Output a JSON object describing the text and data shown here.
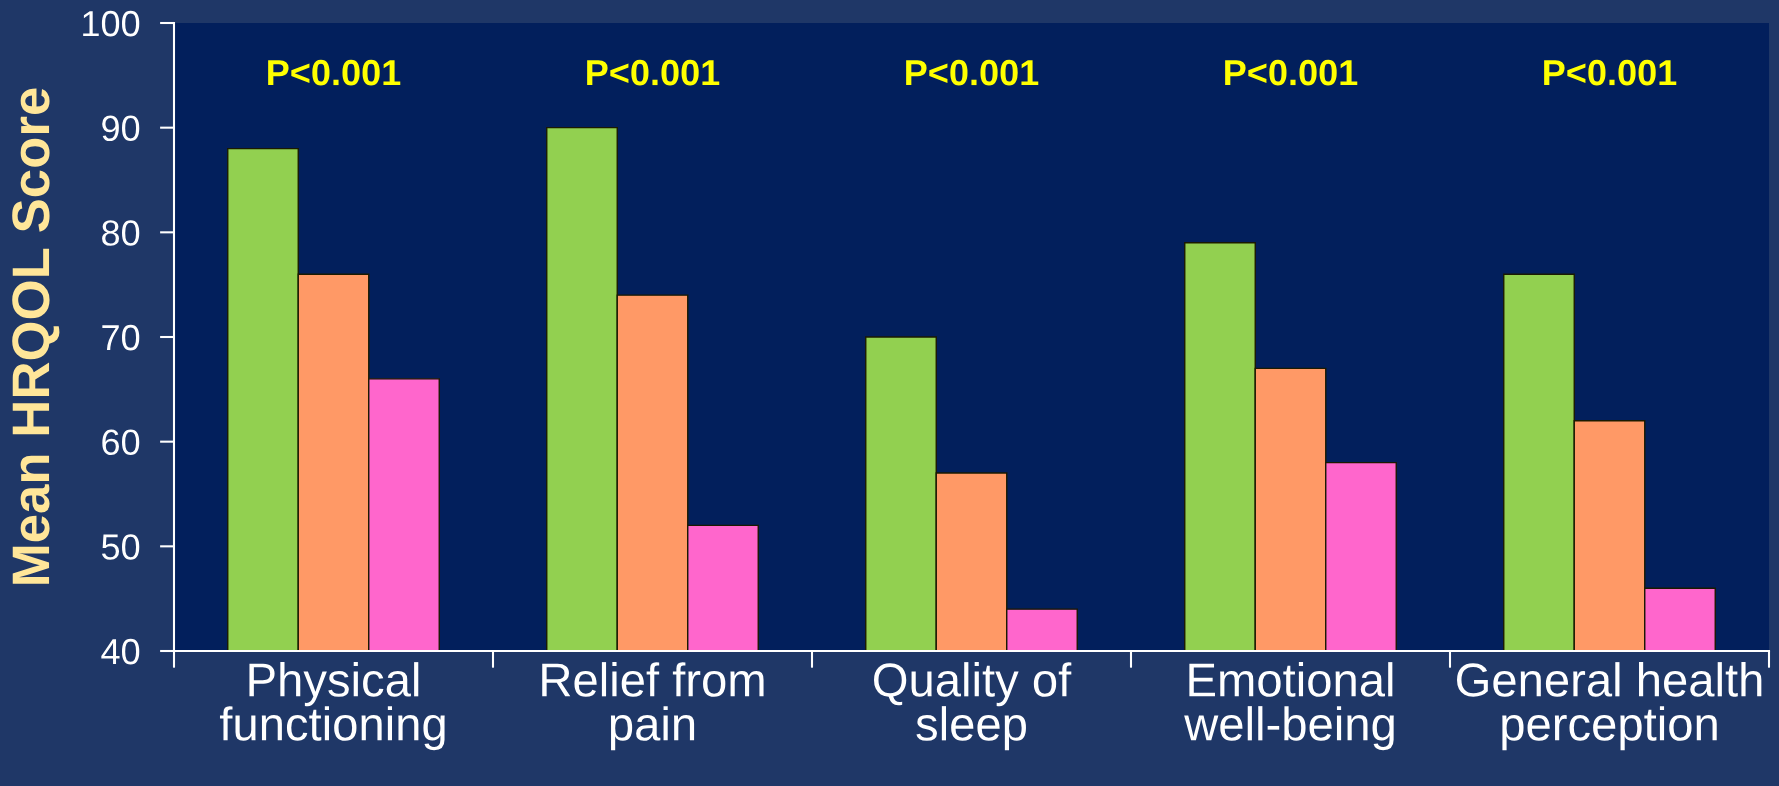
{
  "chart_data": {
    "type": "bar",
    "ylabel": "Mean HRQOL Score",
    "categories": [
      "Physical\nfunctioning",
      "Relief from\npain",
      "Quality of\nsleep",
      "Emotional\nwell-being",
      "General health\nperception"
    ],
    "series": [
      {
        "color": "#92d050",
        "values": [
          88,
          90,
          70,
          79,
          76
        ]
      },
      {
        "color": "#ff9966",
        "values": [
          76,
          74,
          57,
          67,
          62
        ]
      },
      {
        "color": "#ff66cc",
        "values": [
          66,
          52,
          44,
          58,
          46
        ]
      }
    ],
    "ylim": [
      40,
      100
    ],
    "yticks": [
      40,
      50,
      60,
      70,
      80,
      90,
      100
    ],
    "annotations": [
      "P<0.001",
      "P<0.001",
      "P<0.001",
      "P<0.001",
      "P<0.001"
    ]
  }
}
